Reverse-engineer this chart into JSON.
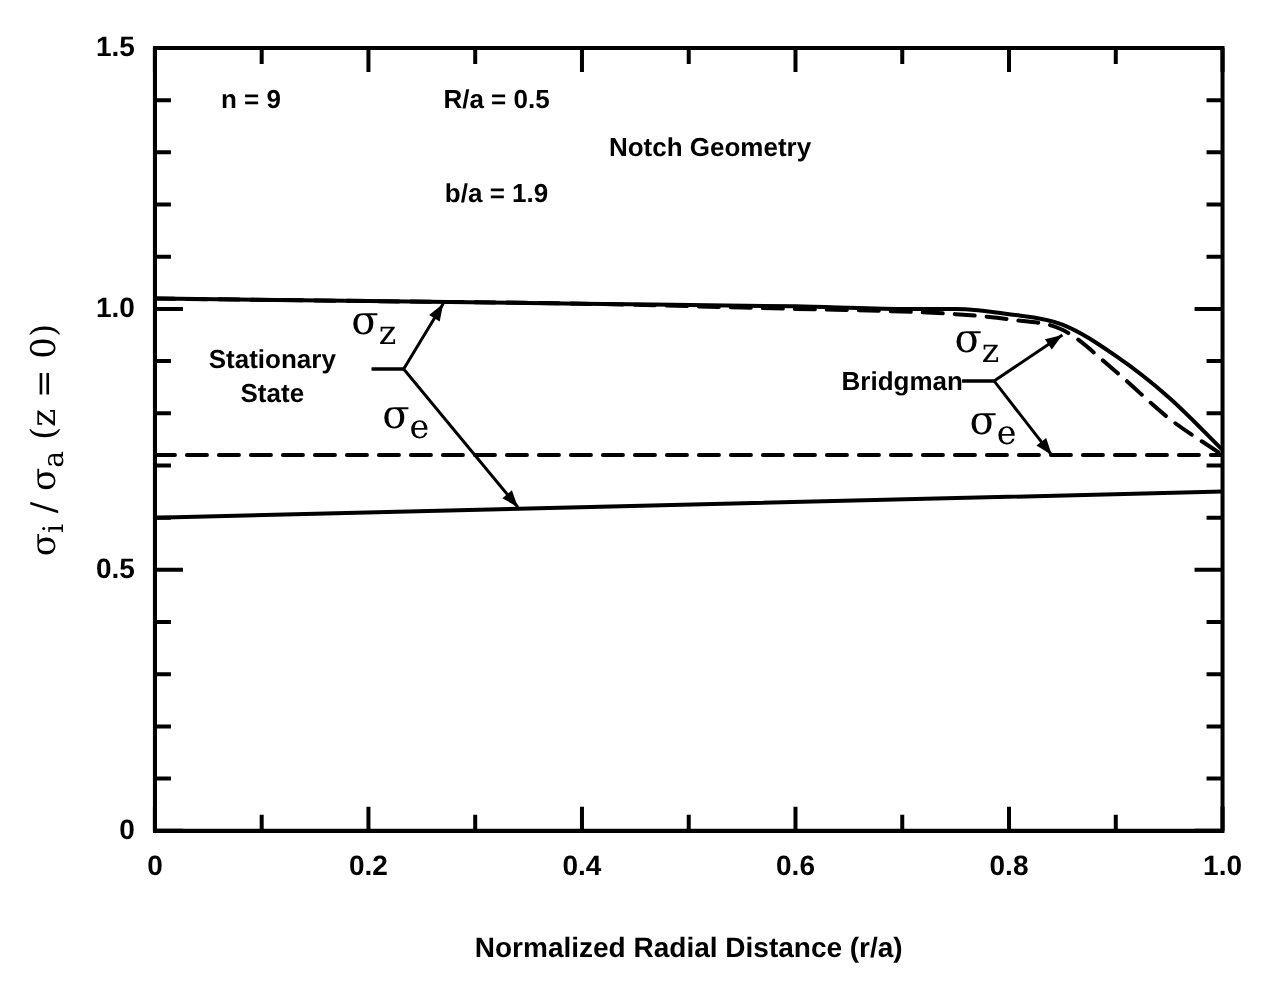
{
  "chart_data": {
    "type": "line",
    "xlabel": "Normalized Radial Distance (r/a)",
    "ylabel": "σ$_{i}$ / σ$_{a}$ (z = 0)",
    "xlim": [
      0,
      1
    ],
    "ylim": [
      0,
      1.5
    ],
    "xticks": [
      0,
      {
        "value": 0.1,
        "label": null
      },
      0.2,
      {
        "value": 0.3,
        "label": null
      },
      0.4,
      {
        "value": 0.5,
        "label": null
      },
      0.6,
      {
        "value": 0.7,
        "label": null
      },
      0.8,
      {
        "value": 0.9,
        "label": null
      },
      {
        "value": 1,
        "label": "1.0"
      }
    ],
    "yticks": [
      0,
      {
        "value": 0.1,
        "label": null
      },
      {
        "value": 0.2,
        "label": null
      },
      {
        "value": 0.3,
        "label": null
      },
      {
        "value": 0.4,
        "label": null
      },
      0.5,
      {
        "value": 0.6,
        "label": null
      },
      {
        "value": 0.7,
        "label": null
      },
      {
        "value": 0.8,
        "label": null
      },
      {
        "value": 0.9,
        "label": null
      },
      {
        "value": 1,
        "label": "1.0"
      },
      {
        "value": 1.1,
        "label": null
      },
      {
        "value": 1.2,
        "label": null
      },
      {
        "value": 1.3,
        "label": null
      },
      {
        "value": 1.4,
        "label": null
      },
      {
        "value": 1.5,
        "label": "1.5"
      }
    ],
    "grid": false,
    "legend": false,
    "marker": "none",
    "series": [
      {
        "color": "#000000",
        "line_style": "solid",
        "x": [
          0,
          0.2,
          0.4,
          0.6,
          0.7,
          0.75,
          0.8,
          0.85,
          0.9,
          0.95,
          1
        ],
        "values": [
          1.02,
          1.015,
          1.01,
          1.005,
          1,
          1,
          0.99,
          0.97,
          0.91,
          0.83,
          0.73
        ]
      },
      {
        "color": "#000000",
        "line_style": "dashed",
        "x": [
          0,
          0.2,
          0.4,
          0.6,
          0.7,
          0.75,
          0.8,
          0.85,
          0.9,
          0.95,
          1
        ],
        "values": [
          1.02,
          1.015,
          1.01,
          1,
          0.995,
          0.99,
          0.98,
          0.96,
          0.88,
          0.79,
          0.72
        ]
      },
      {
        "color": "#000000",
        "line_style": "solid",
        "x": [
          0,
          1
        ],
        "values": [
          0.6,
          0.65
        ]
      },
      {
        "color": "#000000",
        "line_style": "dashed",
        "x": [
          0,
          1
        ],
        "values": [
          0.72,
          0.72
        ]
      }
    ],
    "annotations": [
      "n = 9",
      "R/a = 0.5",
      "b/a = 1.9",
      "Notch Geometry",
      "Stationary State",
      {
        "text": "σ$_{z}$",
        "x": 0.27,
        "y": 1.01
      },
      {
        "text": "σ$_{e}$",
        "x": 0.34,
        "y": 0.62
      },
      "Bridgman",
      {
        "text": "σ$_{z}$",
        "x": 0.85,
        "y": 0.95
      },
      {
        "text": "σ$_{e}$",
        "x": 0.84,
        "y": 0.72
      }
    ]
  }
}
